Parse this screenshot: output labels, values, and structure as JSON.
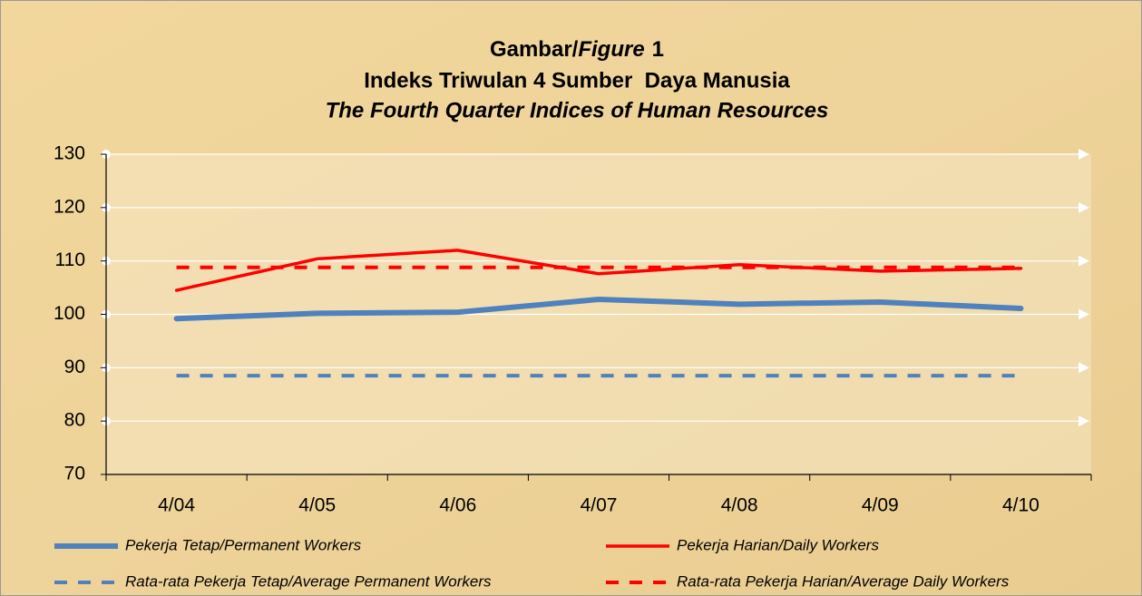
{
  "chart_data": {
    "type": "line",
    "figure_label": "Gambar/",
    "figure_label_en": "Figure",
    "figure_number": "1",
    "title": "Indeks Triwulan 4 Sumber  Daya Manusia",
    "subtitle": "The Fourth Quarter Indices of Human Resources",
    "categories": [
      "4/04",
      "4/05",
      "4/06",
      "4/07",
      "4/08",
      "4/09",
      "4/10"
    ],
    "series": [
      {
        "name": "Pekerja Tetap/Permanent Workers",
        "color": "#4f81bd",
        "dashed": false,
        "width": 6,
        "values": [
          99.2,
          100.2,
          100.4,
          102.8,
          101.9,
          102.3,
          101.1
        ]
      },
      {
        "name": "Pekerja Harian/Daily Workers",
        "color": "#ff0000",
        "dashed": false,
        "width": 3.5,
        "values": [
          104.5,
          110.4,
          112.0,
          107.6,
          109.3,
          108.1,
          108.6
        ]
      },
      {
        "name": "Rata-rata Pekerja Tetap/Average Permanent Workers",
        "color": "#4f81bd",
        "dashed": true,
        "width": 4,
        "values": [
          88.5,
          88.5,
          88.5,
          88.5,
          88.5,
          88.5,
          88.5
        ]
      },
      {
        "name": "Rata-rata Pekerja Harian/Average Daily Workers",
        "color": "#ff0000",
        "dashed": true,
        "width": 4,
        "values": [
          108.8,
          108.8,
          108.8,
          108.8,
          108.8,
          108.8,
          108.8
        ]
      }
    ],
    "ylim": [
      70,
      130
    ],
    "yticks": [
      70,
      80,
      90,
      100,
      110,
      120,
      130
    ],
    "grid": true
  }
}
